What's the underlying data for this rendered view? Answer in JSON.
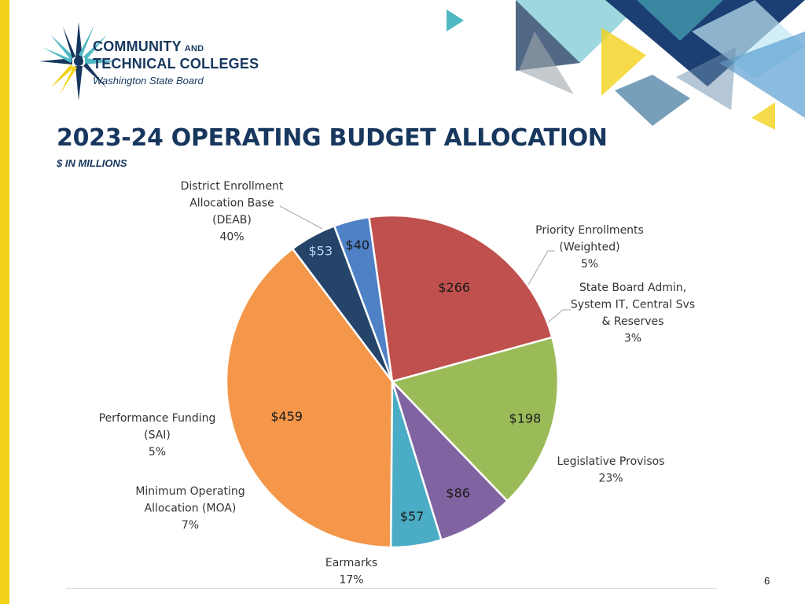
{
  "colors": {
    "navy": "#17375e",
    "accent_yellow": "#f2d21b",
    "teal": "#4fb8c2",
    "label_text": "#333333",
    "footer_line": "#d9d9d9"
  },
  "logo": {
    "line1": "COMMUNITY",
    "line1_suffix": "AND",
    "line2": "TECHNICAL COLLEGES",
    "line3": "Washington State Board"
  },
  "slide": {
    "title": "2023-24 OPERATING BUDGET ALLOCATION",
    "subtitle": "$ IN MILLIONS",
    "page_number": "6"
  },
  "chart_data": {
    "type": "pie",
    "title": "",
    "unit": "$ in millions",
    "slices": [
      {
        "name": "District Enrollment Allocation Base (DEAB)",
        "label_lines": [
          "District Enrollment",
          "Allocation Base",
          "(DEAB)"
        ],
        "percent_label": "40%",
        "value": 459,
        "value_label": "$459",
        "color": "#f4974a",
        "value_color": "#1a1a1a"
      },
      {
        "name": "Priority Enrollments (Weighted)",
        "label_lines": [
          "Priority Enrollments",
          "(Weighted)"
        ],
        "percent_label": "5%",
        "value": 53,
        "value_label": "$53",
        "color": "#24446a",
        "value_color": "#bcd3ee"
      },
      {
        "name": "State Board Admin, System IT, Central Svs & Reserves",
        "label_lines": [
          "State Board Admin,",
          "System IT, Central Svs",
          "& Reserves"
        ],
        "percent_label": "3%",
        "value": 40,
        "value_label": "$40",
        "color": "#4f81c7",
        "value_color": "#1a1a1a"
      },
      {
        "name": "Legislative Provisos",
        "label_lines": [
          "Legislative Provisos"
        ],
        "percent_label": "23%",
        "value": 266,
        "value_label": "$266",
        "color": "#c0504d",
        "value_color": "#1a1a1a"
      },
      {
        "name": "Earmarks",
        "label_lines": [
          "Earmarks"
        ],
        "percent_label": "17%",
        "value": 198,
        "value_label": "$198",
        "color": "#9bbb59",
        "value_color": "#1a1a1a"
      },
      {
        "name": "Minimum Operating Allocation (MOA)",
        "label_lines": [
          "Minimum Operating",
          "Allocation (MOA)"
        ],
        "percent_label": "7%",
        "value": 86,
        "value_label": "$86",
        "color": "#8064a2",
        "value_color": "#1a1a1a"
      },
      {
        "name": "Performance Funding (SAI)",
        "label_lines": [
          "Performance Funding",
          "(SAI)"
        ],
        "percent_label": "5%",
        "value": 57,
        "value_label": "$57",
        "color": "#4bacc6",
        "value_color": "#1a1a1a"
      }
    ]
  }
}
